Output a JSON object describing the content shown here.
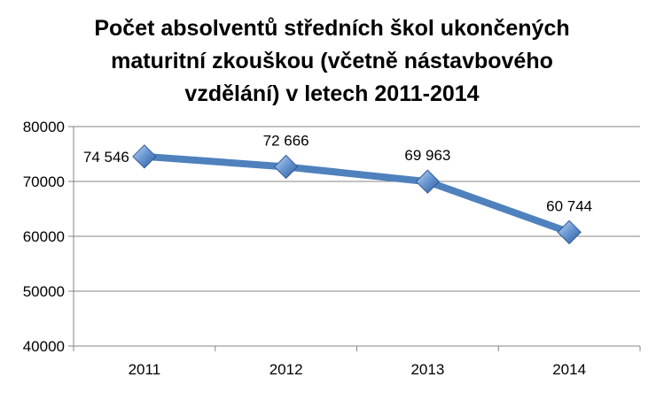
{
  "chart_data": {
    "type": "line",
    "title_lines": [
      "Počet absolventů středních škol ukončených",
      "maturitní zkouškou (včetně nástavbového",
      "vzdělání) v letech 2011-2014"
    ],
    "categories": [
      "2011",
      "2012",
      "2013",
      "2014"
    ],
    "values": [
      74546,
      72666,
      69963,
      60744
    ],
    "data_labels": [
      "74 546",
      "72 666",
      "69 963",
      "60 744"
    ],
    "y_ticks": [
      "40000",
      "50000",
      "60000",
      "70000",
      "80000"
    ],
    "ylim": [
      40000,
      80000
    ],
    "grid": true,
    "legend": "none",
    "colors": {
      "line": "#4F81BD",
      "marker_light": "#A9C4EB",
      "marker_dark": "#2E5C9A",
      "grid": "#868686"
    }
  }
}
